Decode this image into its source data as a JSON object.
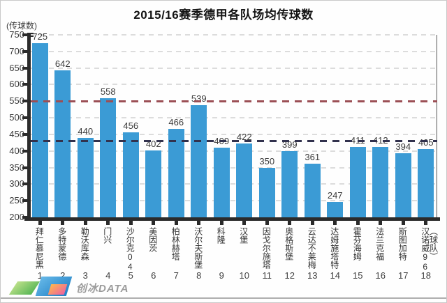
{
  "header": {
    "title": "2015/16赛季德甲各队场均传球数"
  },
  "axes": {
    "y_unit": "(传球数)",
    "x_unit": "（球队）"
  },
  "footer": {
    "brand": "创冰DATA"
  },
  "colors": {
    "bar": "#3b9bd5",
    "grid": "#dcdcdc",
    "axis": "#2b2b2b",
    "ref_high": "#9b4f55",
    "ref_low": "#32324e"
  },
  "chart_data": {
    "type": "bar",
    "title": "2015/16赛季德甲各队场均传球数",
    "ylabel": "(传球数)",
    "xlabel": "（球队）",
    "categories": [
      "拜仁慕尼黑",
      "多特蒙德",
      "勒沃库森",
      "门兴",
      "沙尔克04",
      "美因茨",
      "柏林赫塔",
      "沃尔夫斯堡",
      "科隆",
      "汉堡",
      "因戈尔施塔",
      "奥格斯堡",
      "云达不莱梅",
      "达姆施塔特",
      "霍芬海姆",
      "法兰克福",
      "斯图加特",
      "汉诺威96"
    ],
    "ranks": [
      "1",
      "2",
      "3",
      "4",
      "5",
      "6",
      "7",
      "8",
      "9",
      "10",
      "11",
      "12",
      "13",
      "14",
      "15",
      "16",
      "17",
      "18"
    ],
    "values": [
      725,
      642,
      440,
      558,
      456,
      402,
      466,
      539,
      409,
      422,
      350,
      399,
      361,
      247,
      411,
      412,
      394,
      405
    ],
    "ylim": [
      200,
      750
    ],
    "ytick_step": 50,
    "grid": true,
    "legend": false,
    "reference_lines": [
      {
        "value": 550,
        "color": "#9b4f55"
      },
      {
        "value": 430,
        "color": "#32324e"
      }
    ]
  }
}
